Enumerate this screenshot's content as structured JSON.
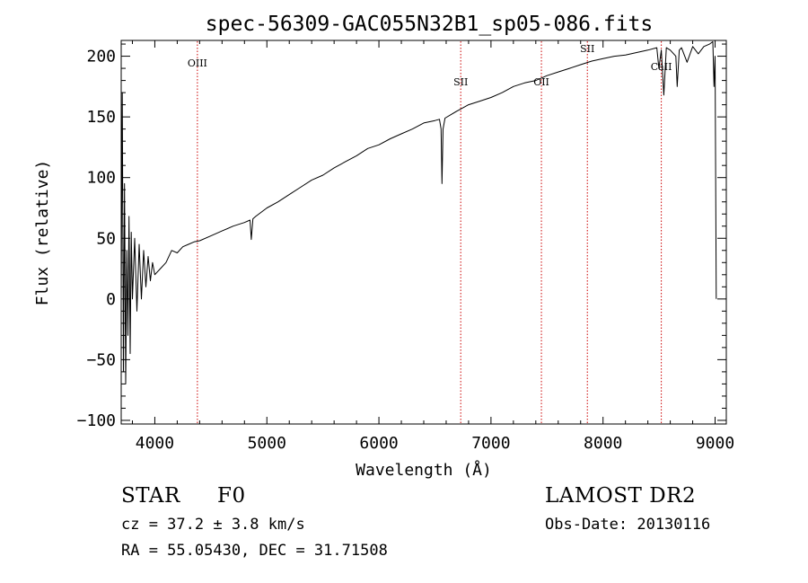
{
  "chart_data": {
    "type": "line",
    "title": "spec-56309-GAC055N32B1_sp05-086.fits",
    "xlabel": "Wavelength (Å)",
    "ylabel": "Flux (relative)",
    "xlim": [
      3700,
      9100
    ],
    "ylim": [
      -103,
      213
    ],
    "xticks": [
      4000,
      5000,
      6000,
      7000,
      8000,
      9000
    ],
    "xtick_labels": [
      "4000",
      "5000",
      "6000",
      "7000",
      "8000",
      "9000"
    ],
    "yticks": [
      -100,
      -50,
      0,
      50,
      100,
      150,
      200
    ],
    "ytick_labels": [
      "−100",
      "−50",
      "0",
      "50",
      "100",
      "150",
      "200"
    ],
    "grid": false,
    "series": [
      {
        "x": [
          3700,
          3710,
          3720,
          3730,
          3740,
          3750,
          3760,
          3770,
          3780,
          3790,
          3800,
          3820,
          3840,
          3860,
          3880,
          3900,
          3920,
          3940,
          3960,
          3980,
          4000,
          4050,
          4100,
          4150,
          4200,
          4250,
          4300,
          4350,
          4400,
          4500,
          4600,
          4700,
          4800,
          4850,
          4861,
          4875,
          4900,
          5000,
          5100,
          5200,
          5300,
          5400,
          5500,
          5600,
          5700,
          5800,
          5900,
          6000,
          6100,
          6200,
          6300,
          6400,
          6500,
          6540,
          6555,
          6563,
          6572,
          6590,
          6700,
          6800,
          6900,
          7000,
          7100,
          7200,
          7300,
          7400,
          7500,
          7600,
          7700,
          7800,
          7900,
          8000,
          8100,
          8200,
          8300,
          8400,
          8480,
          8498,
          8520,
          8542,
          8565,
          8600,
          8650,
          8662,
          8680,
          8700,
          8750,
          8800,
          8850,
          8900,
          8950,
          8980,
          8990,
          9000,
          9010
        ],
        "y": [
          0,
          170,
          -60,
          95,
          -70,
          40,
          -30,
          68,
          -45,
          55,
          0,
          50,
          -10,
          45,
          0,
          40,
          10,
          35,
          15,
          30,
          20,
          25,
          30,
          40,
          38,
          43,
          45,
          47,
          48,
          52,
          56,
          60,
          63,
          65,
          49,
          66,
          68,
          75,
          80,
          86,
          92,
          98,
          102,
          108,
          113,
          118,
          124,
          127,
          132,
          136,
          140,
          145,
          147,
          148,
          140,
          95,
          140,
          149,
          155,
          160,
          163,
          166,
          170,
          175,
          178,
          180,
          184,
          187,
          190,
          193,
          196,
          198,
          200,
          201,
          203,
          205,
          207,
          190,
          205,
          168,
          207,
          205,
          200,
          175,
          205,
          207,
          195,
          208,
          202,
          208,
          210,
          212,
          175,
          200,
          0
        ]
      }
    ],
    "annotations": [
      {
        "label": "OIII",
        "x": 4380
      },
      {
        "label": "SII",
        "x": 6730
      },
      {
        "label": "OII",
        "x": 7450
      },
      {
        "label": "SII",
        "x": 7860
      },
      {
        "label": "CaII",
        "x": 8520
      }
    ],
    "annotation_line_color": "#cc0000"
  },
  "footer": {
    "object_class": "STAR",
    "subclass": "F0",
    "survey": "LAMOST DR2",
    "cz": "cz = 37.2 ± 3.8 km/s",
    "obs_date": "Obs-Date: 20130116",
    "radec": "RA =  55.05430, DEC =  31.71508"
  }
}
